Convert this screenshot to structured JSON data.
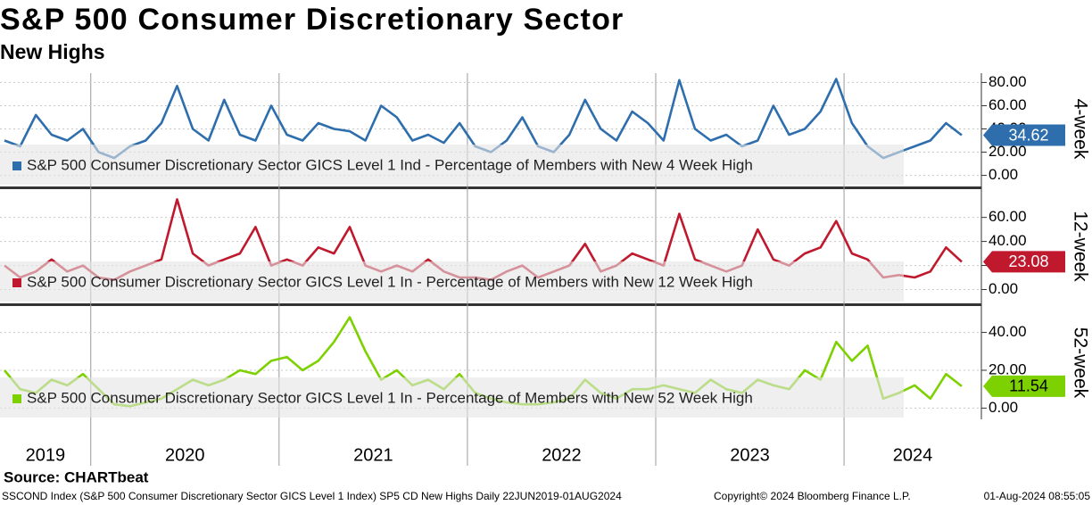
{
  "header": {
    "title": "S&P 500 Consumer Discretionary Sector",
    "subtitle": "New Highs"
  },
  "source": "Source: CHARTbeat",
  "footer": [
    "SSCOND Index (S&P 500 Consumer Discretionary Sector GICS Level 1 Index) SP5 CD New Highs  Daily 22JUN2019-01AUG2024",
    "Copyright© 2024 Bloomberg Finance L.P.",
    "01-Aug-2024 08:55:05"
  ],
  "chart_data": [
    {
      "type": "line",
      "panel_label": "4-week",
      "ylim": [
        -8,
        88
      ],
      "yticks": [
        {
          "value": 0,
          "label": "0.00"
        },
        {
          "value": 20,
          "label": "20.00"
        },
        {
          "value": 40,
          "label": "40.00"
        },
        {
          "value": 60,
          "label": "60.00"
        },
        {
          "value": 80,
          "label": "80.00"
        }
      ],
      "grid": true,
      "series": [
        {
          "name": "S&P 500 Consumer Discretionary Sector GICS Level 1 Ind - Percentage of Members with New 4 Week High",
          "color": "#2e6ead",
          "values": [
            30,
            25,
            52,
            35,
            30,
            40,
            20,
            15,
            25,
            30,
            45,
            77,
            40,
            30,
            65,
            35,
            30,
            60,
            35,
            30,
            45,
            40,
            38,
            30,
            60,
            50,
            30,
            35,
            28,
            45,
            25,
            20,
            30,
            50,
            25,
            20,
            35,
            65,
            40,
            30,
            55,
            45,
            30,
            82,
            40,
            30,
            35,
            25,
            30,
            60,
            35,
            40,
            55,
            83,
            45,
            25,
            15,
            20,
            25,
            30,
            45,
            34.62
          ]
        }
      ]
    },
    {
      "type": "line",
      "panel_label": "12-week",
      "ylim": [
        -10,
        82
      ],
      "yticks": [
        {
          "value": 0,
          "label": "0.00"
        },
        {
          "value": 20,
          "label": "20.00"
        },
        {
          "value": 40,
          "label": "40.00"
        },
        {
          "value": 60,
          "label": "60.00"
        }
      ],
      "grid": true,
      "series": [
        {
          "name": "S&P 500 Consumer Discretionary Sector GICS Level 1 In - Percentage of Members with New 12 Week High",
          "color": "#c0182d",
          "values": [
            20,
            10,
            15,
            25,
            15,
            20,
            10,
            8,
            15,
            20,
            25,
            75,
            30,
            20,
            25,
            30,
            52,
            20,
            25,
            20,
            35,
            30,
            52,
            20,
            15,
            20,
            15,
            25,
            15,
            10,
            10,
            8,
            15,
            20,
            10,
            15,
            20,
            38,
            15,
            20,
            30,
            25,
            20,
            63,
            25,
            20,
            15,
            20,
            50,
            25,
            20,
            30,
            35,
            57,
            30,
            25,
            10,
            12,
            10,
            15,
            35,
            23.08
          ]
        }
      ]
    },
    {
      "type": "line",
      "panel_label": "52-week",
      "ylim": [
        -5,
        53
      ],
      "yticks": [
        {
          "value": 0,
          "label": "0.00"
        },
        {
          "value": 20,
          "label": "20.00"
        },
        {
          "value": 40,
          "label": "40.00"
        }
      ],
      "grid": true,
      "categories": [
        "2019",
        null,
        null,
        null,
        null,
        null,
        "2020",
        null,
        null,
        null,
        null,
        null,
        null,
        null,
        null,
        null,
        null,
        null,
        "2021",
        null,
        null,
        null,
        null,
        null,
        null,
        null,
        null,
        null,
        null,
        null,
        "2022",
        null,
        null,
        null,
        null,
        null,
        null,
        null,
        null,
        null,
        null,
        null,
        "2023",
        null,
        null,
        null,
        null,
        null,
        null,
        null,
        null,
        null,
        null,
        null,
        "2024",
        null,
        null,
        null,
        null,
        null,
        null,
        null
      ],
      "series": [
        {
          "name": "S&P 500 Consumer Discretionary Sector GICS Level 1 In - Percentage of Members with New 52 Week High",
          "color": "#7ed100",
          "values": [
            20,
            10,
            8,
            15,
            12,
            18,
            10,
            2,
            1,
            3,
            5,
            10,
            15,
            12,
            15,
            20,
            18,
            25,
            27,
            20,
            25,
            35,
            48,
            30,
            15,
            20,
            12,
            15,
            10,
            18,
            8,
            5,
            3,
            2,
            2,
            3,
            5,
            15,
            8,
            5,
            10,
            10,
            12,
            10,
            8,
            15,
            10,
            8,
            15,
            12,
            10,
            20,
            15,
            35,
            25,
            33,
            5,
            8,
            12,
            5,
            18,
            11.54
          ]
        }
      ]
    }
  ]
}
